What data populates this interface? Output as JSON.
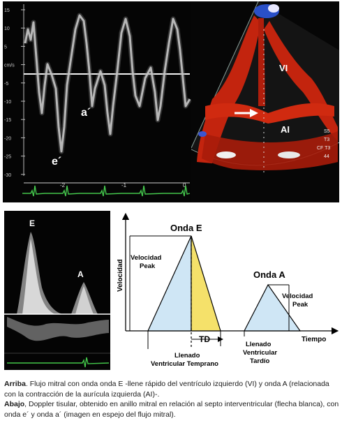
{
  "top_doppler": {
    "y_ticks": [
      "15",
      "10",
      "5",
      "cm/s",
      "-5",
      "-10",
      "-15",
      "-20",
      "-25",
      "-30"
    ],
    "x_ticks": [
      "-2",
      "-1",
      "0"
    ],
    "wave_labels": {
      "e_prime": "e´",
      "a_prime": "a´"
    }
  },
  "echo_view": {
    "labels": {
      "lv": "VI",
      "la": "AI"
    },
    "side_text": [
      "S5",
      "T3",
      "CF T3",
      "44"
    ]
  },
  "bottom_doppler": {
    "wave_labels": {
      "e": "E",
      "a": "A"
    }
  },
  "schematic": {
    "y_axis_label": "Velocidad",
    "x_axis_label": "Tiempo",
    "onda_e_title": "Onda E",
    "onda_a_title": "Onda A",
    "vel_peak_left": [
      "Velocidad",
      "Peak"
    ],
    "vel_peak_right": [
      "Velocidad",
      "Peak"
    ],
    "td_label": "TD",
    "early_fill": [
      "Llenado",
      "Ventricular Temprano"
    ],
    "late_fill": [
      "Llenado",
      "Ventricular",
      "Tardío"
    ],
    "colors": {
      "light_blue": "#cfe6f5",
      "yellow": "#f5e16a"
    }
  },
  "caption": {
    "arriba_label": "Arriba",
    "arriba_text": ". Flujo mitral con onda onda E -llene rápido del ventrículo izquierdo (VI) y onda A (relacionada con la contracción de la aurícula izquierda (AI)-.",
    "abajo_label": "Abajo",
    "abajo_text": ", Doppler tisular, obtenido en anillo mitral en relación al septo interventricular (flecha blanca), con onda e´ y onda a´ (imagen en espejo del flujo mitral)."
  }
}
